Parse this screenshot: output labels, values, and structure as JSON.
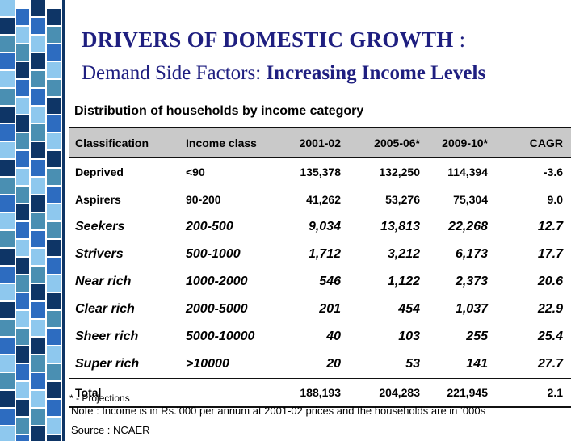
{
  "colors": {
    "title": "#1f1f80",
    "header_bg": "#c9c9c9",
    "stripe_navy": "#0e3566",
    "stripe_teal": "#4a8fb2",
    "stripe_sky": "#8ec8ee",
    "stripe_blue": "#2d6cc0"
  },
  "slide": {
    "title": "DRIVERS OF DOMESTIC GROWTH",
    "title_colon": ":",
    "subtitle_prefix": "Demand Side Factors:",
    "subtitle_emphasis": "Increasing Income Levels"
  },
  "table": {
    "caption": "Distribution of households by income category",
    "headers": [
      "Classification",
      "Income class",
      "2001-02",
      "2005-06*",
      "2009-10*",
      "CAGR"
    ],
    "rows": [
      [
        "Deprived",
        "<90",
        "135,378",
        "132,250",
        "114,394",
        "-3.6"
      ],
      [
        "Aspirers",
        "90-200",
        "41,262",
        "53,276",
        "75,304",
        "9.0"
      ],
      [
        "Seekers",
        "200-500",
        "9,034",
        "13,813",
        "22,268",
        "12.7"
      ],
      [
        "Strivers",
        "500-1000",
        "1,712",
        "3,212",
        "6,173",
        "17.7"
      ],
      [
        "Near rich",
        "1000-2000",
        "546",
        "1,122",
        "2,373",
        "20.6"
      ],
      [
        "Clear rich",
        "2000-5000",
        "201",
        "454",
        "1,037",
        "22.9"
      ],
      [
        "Sheer rich",
        "5000-10000",
        "40",
        "103",
        "255",
        "25.4"
      ],
      [
        "Super rich",
        ">10000",
        "20",
        "53",
        "141",
        "27.7"
      ]
    ],
    "total": [
      "Total",
      "188,193",
      "204,283",
      "221,945",
      "2.1"
    ]
  },
  "notes": {
    "projections": "* - Projections",
    "income_note": "Note : Income is in Rs.’000 per annum at 2001-02 prices and the households are in ‘000s",
    "source": "Source : NCAER"
  }
}
